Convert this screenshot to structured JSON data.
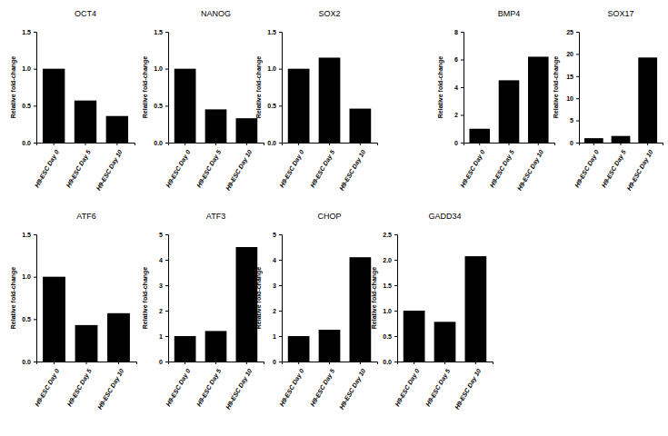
{
  "chart_data": [
    {
      "type": "bar",
      "title": "OCT4",
      "ylabel": "Relative fold-change",
      "categories": [
        "H9-ESC Day 0",
        "H9-ESC Day 5",
        "H9-ESC Day 10"
      ],
      "values": [
        1.0,
        0.57,
        0.36
      ],
      "color": "#000000",
      "ylim": [
        0,
        1.5
      ],
      "yticks": [
        {
          "value": 0,
          "label": "0.0"
        },
        0.5,
        {
          "value": 1,
          "label": "1.0"
        },
        1.5
      ]
    },
    {
      "type": "bar",
      "title": "NANOG",
      "ylabel": "Relative fold-change",
      "categories": [
        "H9-ESC Day 0",
        "H9-ESC Day 5",
        "H9-ESC Day 10"
      ],
      "values": [
        1.0,
        0.45,
        0.33
      ],
      "color": "#000000",
      "ylim": [
        0,
        1.5
      ],
      "yticks": [
        {
          "value": 0,
          "label": "0.0"
        },
        0.5,
        {
          "value": 1,
          "label": "1.0"
        },
        1.5
      ]
    },
    {
      "type": "bar",
      "title": "SOX2",
      "ylabel": "Relative fold-change",
      "categories": [
        "H9-ESC Day 0",
        "H9-ESC Day 5",
        "H9-ESC Day 10"
      ],
      "values": [
        1.0,
        1.15,
        0.46
      ],
      "color": "#000000",
      "ylim": [
        0,
        1.5
      ],
      "yticks": [
        {
          "value": 0,
          "label": "0.0"
        },
        0.5,
        {
          "value": 1,
          "label": "1.0"
        },
        1.5
      ]
    },
    {
      "type": "bar",
      "title": "BMP4",
      "ylabel": "Relative fold-change",
      "categories": [
        "H9-ESC Day 0",
        "H9-ESC Day 5",
        "H9-ESC Day 10"
      ],
      "values": [
        1.0,
        4.5,
        6.2
      ],
      "color": "#000000",
      "ylim": [
        0,
        8
      ],
      "yticks": [
        0,
        2,
        4,
        6,
        8
      ]
    },
    {
      "type": "bar",
      "title": "SOX17",
      "ylabel": "Relative fold-change",
      "categories": [
        "H9-ESC Day 0",
        "H9-ESC Day 5",
        "H9-ESC Day 10"
      ],
      "values": [
        1.0,
        1.5,
        19.2
      ],
      "color": "#000000",
      "ylim": [
        0,
        25
      ],
      "yticks": [
        0,
        5,
        10,
        15,
        20,
        25
      ]
    },
    {
      "type": "bar",
      "title": "ATF6",
      "ylabel": "Relative fold-change",
      "categories": [
        "H9-ESC Day 0",
        "H9-ESC Day 5",
        "H9-ESC Day 10"
      ],
      "values": [
        1.0,
        0.43,
        0.57
      ],
      "color": "#000000",
      "ylim": [
        0,
        1.5
      ],
      "yticks": [
        {
          "value": 0,
          "label": "0.0"
        },
        0.5,
        {
          "value": 1,
          "label": "1.0"
        },
        1.5
      ]
    },
    {
      "type": "bar",
      "title": "ATF3",
      "ylabel": "Relative fold-change",
      "categories": [
        "H9-ESC Day 0",
        "H9-ESC Day 5",
        "H9-ESC Day 10"
      ],
      "values": [
        1.0,
        1.2,
        4.5
      ],
      "color": "#000000",
      "ylim": [
        0,
        5
      ],
      "yticks": [
        0,
        1,
        2,
        3,
        4,
        5
      ]
    },
    {
      "type": "bar",
      "title": "CHOP",
      "ylabel": "Relative fold-change",
      "categories": [
        "H9-ESC Day 0",
        "H9-ESC Day 5",
        "H9-ESC Day 10"
      ],
      "values": [
        1.0,
        1.25,
        4.1
      ],
      "color": "#000000",
      "ylim": [
        0,
        5
      ],
      "yticks": [
        0,
        1,
        2,
        3,
        4,
        5
      ]
    },
    {
      "type": "bar",
      "title": "GADD34",
      "ylabel": "Relative fold-change",
      "categories": [
        "H9-ESC Day 0",
        "H9-ESC Day 5",
        "H9-ESC Day 10"
      ],
      "values": [
        1.0,
        0.78,
        2.07
      ],
      "color": "#000000",
      "ylim": [
        0,
        2.5
      ],
      "yticks": [
        {
          "value": 0,
          "label": "0.0"
        },
        0.5,
        {
          "value": 1,
          "label": "1.0"
        },
        1.5,
        {
          "value": 2,
          "label": "2.0"
        },
        2.5
      ]
    }
  ]
}
